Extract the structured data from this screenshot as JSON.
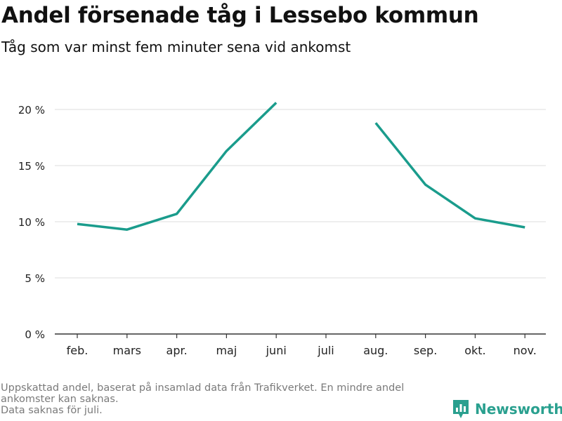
{
  "title": "Andel försenade tåg i Lessebo kommun",
  "subtitle": "Tåg som var minst fem minuter sena vid ankomst",
  "footnote": {
    "line1": "Uppskattad andel, baserat på insamlad data från Trafikverket. En mindre andel",
    "line2": "ankomster kan saknas.",
    "line3": "Data saknas för juli."
  },
  "brand": {
    "name": "Newsworthy",
    "icon": "newsworthy-logo-icon",
    "color": "#2aa08f"
  },
  "chart_data": {
    "type": "line",
    "categories": [
      "feb.",
      "mars",
      "apr.",
      "maj",
      "juni",
      "juli",
      "aug.",
      "sep.",
      "okt.",
      "nov."
    ],
    "series": [
      {
        "values": [
          9.8,
          9.3,
          10.7,
          16.3,
          20.6,
          null,
          18.8,
          13.3,
          10.3,
          9.5
        ],
        "color": "#1a9c8c"
      }
    ],
    "y_ticks": [
      0,
      5,
      10,
      15,
      20
    ],
    "y_tick_labels": [
      "0 %",
      "5 %",
      "10 %",
      "15 %",
      "20 %"
    ],
    "ylim": [
      0,
      20.6
    ],
    "grid": true,
    "gridline_color": "#dddddd",
    "axis_color": "#333333"
  }
}
